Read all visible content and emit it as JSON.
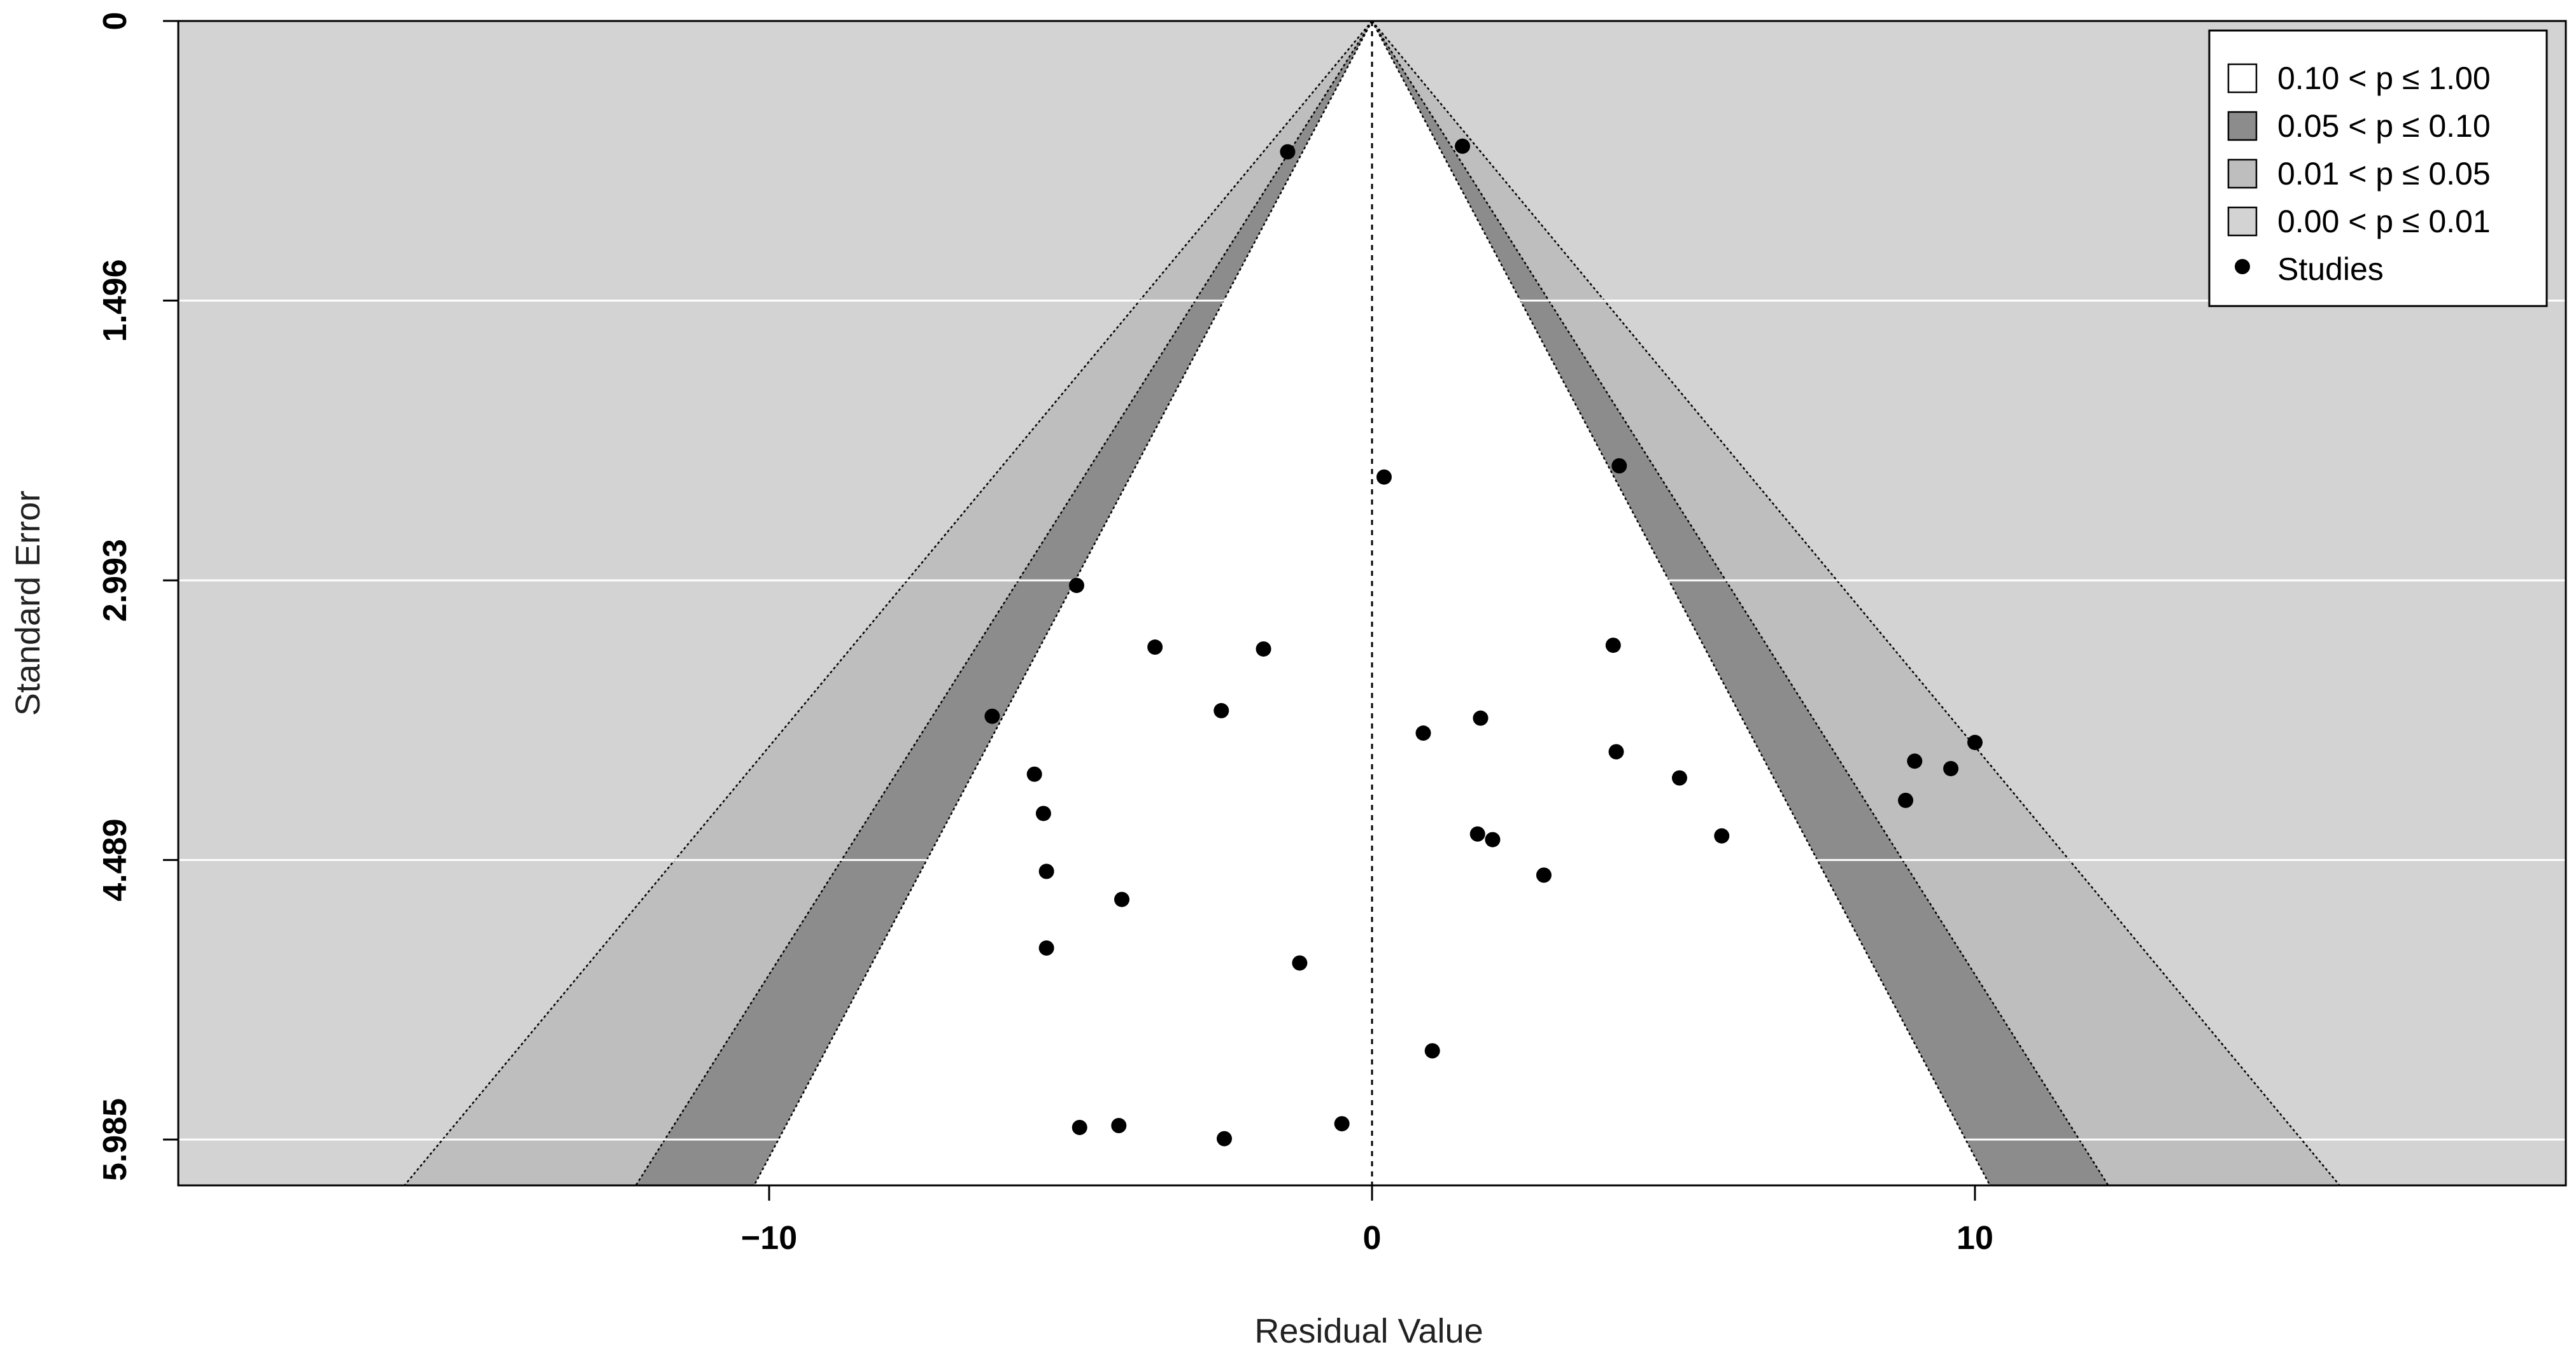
{
  "chart_data": {
    "type": "scatter",
    "subtype": "contour-enhanced funnel plot",
    "xlabel": "Residual Value",
    "ylabel": "Standard Error",
    "xlim": [
      -19.8,
      19.8
    ],
    "ylim": [
      0,
      6.23
    ],
    "y_reversed": true,
    "x_ticks": [
      -10,
      0,
      10
    ],
    "x_tick_labels": [
      "−10",
      "0",
      "10"
    ],
    "y_ticks": [
      0,
      1.496,
      2.993,
      4.489,
      5.985
    ],
    "y_tick_labels": [
      "0",
      "1.496",
      "2.993",
      "4.489",
      "5.985"
    ],
    "grid": "horizontal",
    "background_color": "#d3d3d3",
    "legend_position": "top-right",
    "legend": [
      {
        "label": "0.10 < p ≤ 1.00",
        "color": "#ffffff",
        "marker": "square"
      },
      {
        "label": "0.05 < p ≤ 0.10",
        "color": "#8c8c8c",
        "marker": "square"
      },
      {
        "label": "0.01 < p ≤ 0.05",
        "color": "#bebebe",
        "marker": "square"
      },
      {
        "label": "0.00 < p ≤ 0.01",
        "color": "#d3d3d3",
        "marker": "square"
      },
      {
        "label": "Studies",
        "color": "#000000",
        "marker": "circle"
      }
    ],
    "contours": [
      {
        "z": 1.645,
        "color": "#ffffff"
      },
      {
        "z": 1.96,
        "color": "#8c8c8c"
      },
      {
        "z": 2.576,
        "color": "#bebebe"
      }
    ],
    "reference_line_x": 0,
    "points": [
      {
        "x": -1.4,
        "y": 0.7
      },
      {
        "x": 1.5,
        "y": 0.67
      },
      {
        "x": 0.2,
        "y": 2.44
      },
      {
        "x": 4.1,
        "y": 2.38
      },
      {
        "x": -4.9,
        "y": 3.02
      },
      {
        "x": -3.6,
        "y": 3.35
      },
      {
        "x": -1.8,
        "y": 3.36
      },
      {
        "x": 4.0,
        "y": 3.34
      },
      {
        "x": -6.3,
        "y": 3.72
      },
      {
        "x": -2.5,
        "y": 3.69
      },
      {
        "x": 1.8,
        "y": 3.73
      },
      {
        "x": 0.85,
        "y": 3.81
      },
      {
        "x": 4.05,
        "y": 3.91
      },
      {
        "x": -5.6,
        "y": 4.03
      },
      {
        "x": 5.1,
        "y": 4.05
      },
      {
        "x": 9.0,
        "y": 3.96
      },
      {
        "x": 9.6,
        "y": 4.0
      },
      {
        "x": 10.0,
        "y": 3.86
      },
      {
        "x": -5.45,
        "y": 4.24
      },
      {
        "x": 8.85,
        "y": 4.17
      },
      {
        "x": 1.75,
        "y": 4.35
      },
      {
        "x": 2.0,
        "y": 4.38
      },
      {
        "x": 5.8,
        "y": 4.36
      },
      {
        "x": -5.4,
        "y": 4.55
      },
      {
        "x": 2.85,
        "y": 4.57
      },
      {
        "x": -4.15,
        "y": 4.7
      },
      {
        "x": -5.4,
        "y": 4.96
      },
      {
        "x": -1.2,
        "y": 5.04
      },
      {
        "x": 1.0,
        "y": 5.51
      },
      {
        "x": -4.85,
        "y": 5.92
      },
      {
        "x": -4.2,
        "y": 5.91
      },
      {
        "x": -0.5,
        "y": 5.9
      },
      {
        "x": -2.45,
        "y": 5.98
      }
    ]
  }
}
